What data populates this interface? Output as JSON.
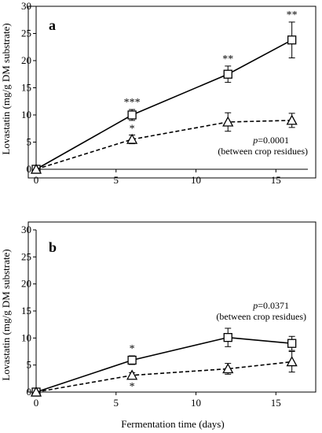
{
  "chart_data": [
    {
      "type": "line",
      "panel_label": "a",
      "x": [
        0,
        6,
        12,
        16
      ],
      "series": [
        {
          "marker": "square",
          "line_style": "solid",
          "values": [
            0,
            10.0,
            17.5,
            23.8
          ],
          "errors": [
            0,
            1.0,
            1.5,
            3.3
          ],
          "significance": [
            "",
            "***",
            "**",
            "**"
          ]
        },
        {
          "marker": "triangle",
          "line_style": "dashed",
          "values": [
            0,
            5.5,
            8.7,
            9.0
          ],
          "errors": [
            0,
            0.8,
            1.7,
            1.3
          ],
          "significance": [
            "",
            "*",
            "",
            ""
          ]
        }
      ],
      "xlim": [
        0,
        17
      ],
      "ylim": [
        0,
        30
      ],
      "xticks": [
        "0",
        "5",
        "10",
        "15"
      ],
      "yticks": [
        "0",
        "5",
        "10",
        "15",
        "20",
        "25",
        "30"
      ],
      "ylabel": "Lovastatin (mg/g DM substrate)",
      "xlabel": "",
      "annotation_p_prefix": "p",
      "annotation_p_value": "=0.0001",
      "annotation_note": "(between crop residues)"
    },
    {
      "type": "line",
      "panel_label": "b",
      "x": [
        0,
        6,
        12,
        16
      ],
      "series": [
        {
          "marker": "square",
          "line_style": "solid",
          "values": [
            0,
            5.9,
            10.1,
            9.0
          ],
          "errors": [
            0,
            0.8,
            1.7,
            1.3
          ],
          "significance": [
            "",
            "*",
            "",
            ""
          ]
        },
        {
          "marker": "triangle",
          "line_style": "dashed",
          "values": [
            0,
            3.1,
            4.3,
            5.6
          ],
          "errors": [
            0,
            0.5,
            1.0,
            1.9
          ],
          "significance": [
            "",
            "*",
            "",
            ""
          ]
        }
      ],
      "xlim": [
        0,
        17
      ],
      "ylim": [
        0,
        30
      ],
      "xticks": [
        "0",
        "5",
        "10",
        "15"
      ],
      "yticks": [
        "0",
        "5",
        "10",
        "15",
        "20",
        "25",
        "30"
      ],
      "ylabel": "Lovastatin (mg/g DM substrate)",
      "xlabel": "Fermentation time (days)",
      "annotation_p_prefix": "p",
      "annotation_p_value": "=0.0371",
      "annotation_note": "(between crop residues)"
    }
  ]
}
